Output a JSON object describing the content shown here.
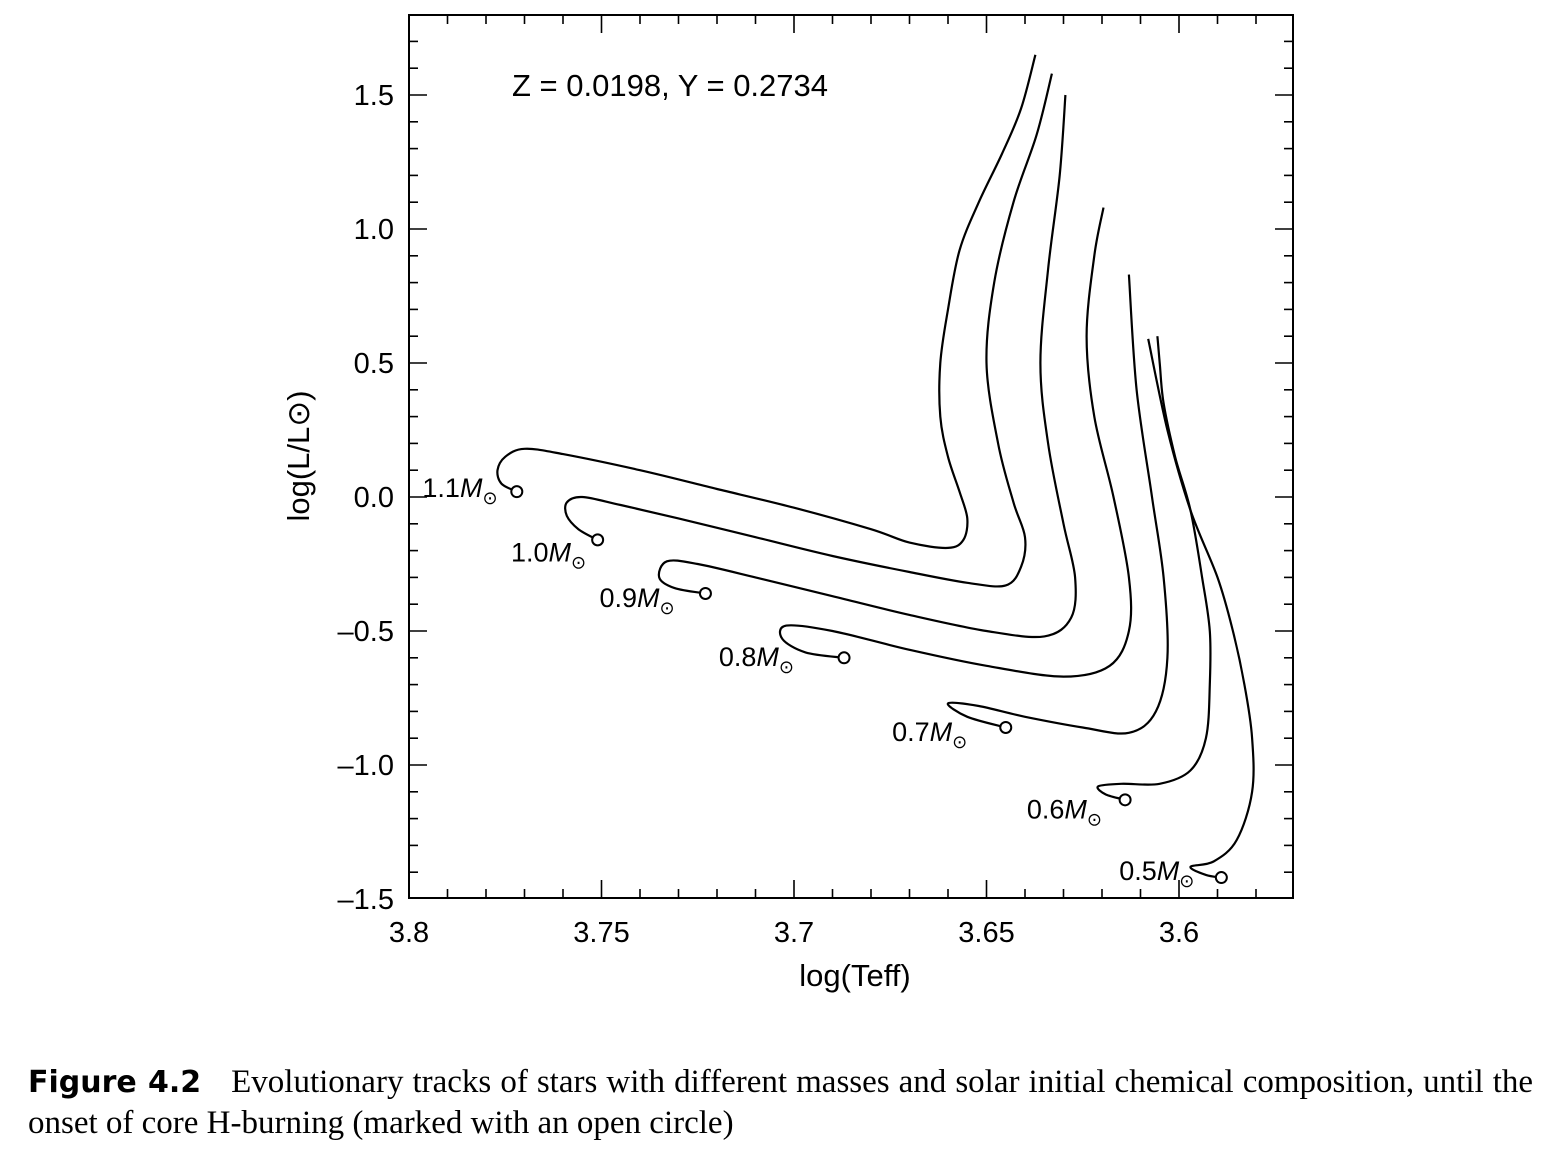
{
  "chart_data": {
    "type": "line",
    "annotation": "Z = 0.0198,  Y = 0.2734",
    "xlabel": "log(Teff)",
    "ylabel": "log(L/L⊙)",
    "xlim": [
      3.8,
      3.57
    ],
    "ylim": [
      -1.5,
      1.8
    ],
    "x_ticks": [
      3.8,
      3.75,
      3.7,
      3.65,
      3.6
    ],
    "x_tick_labels": [
      "3.8",
      "3.75",
      "3.7",
      "3.65",
      "3.6"
    ],
    "y_ticks": [
      1.5,
      1.0,
      0.5,
      0.0,
      -0.5,
      -1.0,
      -1.5
    ],
    "y_tick_labels": [
      "1.5",
      "1.0",
      "0.5",
      "0.0",
      "–0.5",
      "–1.0",
      "–1.5"
    ],
    "grid": false,
    "series": [
      {
        "name": "1.1M⊙",
        "zams": [
          3.772,
          0.02
        ],
        "x": [
          3.772,
          3.776,
          3.777,
          3.775,
          3.77,
          3.76,
          3.74,
          3.72,
          3.7,
          3.68,
          3.67,
          3.66,
          3.656,
          3.655,
          3.657,
          3.66,
          3.662,
          3.662,
          3.66,
          3.657,
          3.652,
          3.646,
          3.641,
          3.6373
        ],
        "y": [
          0.02,
          0.05,
          0.1,
          0.15,
          0.18,
          0.16,
          0.1,
          0.03,
          -0.04,
          -0.12,
          -0.17,
          -0.19,
          -0.16,
          -0.08,
          0.02,
          0.15,
          0.3,
          0.5,
          0.7,
          0.92,
          1.1,
          1.28,
          1.45,
          1.65
        ]
      },
      {
        "name": "1.0M⊙",
        "zams": [
          3.751,
          -0.16
        ],
        "x": [
          3.751,
          3.756,
          3.759,
          3.759,
          3.755,
          3.745,
          3.73,
          3.71,
          3.69,
          3.67,
          3.655,
          3.645,
          3.641,
          3.64,
          3.643,
          3.647,
          3.65,
          3.648,
          3.643,
          3.637,
          3.633
        ],
        "y": [
          -0.16,
          -0.12,
          -0.07,
          -0.02,
          0.0,
          -0.03,
          -0.08,
          -0.15,
          -0.22,
          -0.28,
          -0.32,
          -0.33,
          -0.26,
          -0.15,
          -0.02,
          0.2,
          0.5,
          0.8,
          1.1,
          1.35,
          1.58
        ]
      },
      {
        "name": "0.9M⊙",
        "zams": [
          3.723,
          -0.36
        ],
        "x": [
          3.723,
          3.731,
          3.735,
          3.733,
          3.725,
          3.71,
          3.69,
          3.67,
          3.65,
          3.635,
          3.628,
          3.627,
          3.63,
          3.634,
          3.636,
          3.634,
          3.631,
          3.6295
        ],
        "y": [
          -0.36,
          -0.34,
          -0.3,
          -0.24,
          -0.25,
          -0.3,
          -0.37,
          -0.44,
          -0.5,
          -0.52,
          -0.45,
          -0.3,
          -0.1,
          0.2,
          0.5,
          0.85,
          1.2,
          1.5
        ]
      },
      {
        "name": "0.8M⊙",
        "zams": [
          3.687,
          -0.6
        ],
        "x": [
          3.687,
          3.697,
          3.703,
          3.702,
          3.69,
          3.67,
          3.65,
          3.63,
          3.618,
          3.613,
          3.613,
          3.617,
          3.622,
          3.624,
          3.622,
          3.6196
        ],
        "y": [
          -0.6,
          -0.58,
          -0.53,
          -0.48,
          -0.5,
          -0.57,
          -0.63,
          -0.67,
          -0.63,
          -0.5,
          -0.3,
          0.0,
          0.3,
          0.6,
          0.9,
          1.08
        ]
      },
      {
        "name": "0.7M⊙",
        "zams": [
          3.645,
          -0.86
        ],
        "x": [
          3.645,
          3.655,
          3.66,
          3.652,
          3.64,
          3.625,
          3.613,
          3.606,
          3.603,
          3.604,
          3.607,
          3.611,
          3.613
        ],
        "y": [
          -0.86,
          -0.82,
          -0.77,
          -0.78,
          -0.82,
          -0.86,
          -0.88,
          -0.8,
          -0.6,
          -0.3,
          0.0,
          0.4,
          0.83
        ]
      },
      {
        "name": "0.6M⊙",
        "zams": [
          3.614,
          -1.13
        ],
        "x": [
          3.614,
          3.619,
          3.621,
          3.615,
          3.605,
          3.597,
          3.593,
          3.592,
          3.592,
          3.594,
          3.597,
          3.601,
          3.604,
          3.605,
          3.6056
        ],
        "y": [
          -1.13,
          -1.11,
          -1.08,
          -1.07,
          -1.07,
          -1.02,
          -0.9,
          -0.7,
          -0.5,
          -0.3,
          -0.05,
          0.15,
          0.35,
          0.5,
          0.6
        ]
      },
      {
        "name": "0.5M⊙",
        "zams": [
          3.589,
          -1.42
        ],
        "x": [
          3.589,
          3.593,
          3.597,
          3.591,
          3.585,
          3.581,
          3.581,
          3.583,
          3.586,
          3.59,
          3.597,
          3.603,
          3.608
        ],
        "y": [
          -1.42,
          -1.41,
          -1.38,
          -1.36,
          -1.28,
          -1.1,
          -0.9,
          -0.7,
          -0.5,
          -0.3,
          -0.05,
          0.25,
          0.59
        ]
      }
    ],
    "labels": [
      {
        "series": 0,
        "text_num": "1.1",
        "at": [
          3.777,
          0.0
        ]
      },
      {
        "series": 1,
        "text_num": "1.0",
        "at": [
          3.754,
          -0.24
        ]
      },
      {
        "series": 2,
        "text_num": "0.9",
        "at": [
          3.731,
          -0.41
        ]
      },
      {
        "series": 3,
        "text_num": "0.8",
        "at": [
          3.7,
          -0.63
        ]
      },
      {
        "series": 4,
        "text_num": "0.7",
        "at": [
          3.655,
          -0.91
        ]
      },
      {
        "series": 5,
        "text_num": "0.6",
        "at": [
          3.62,
          -1.2
        ]
      },
      {
        "series": 6,
        "text_num": "0.5",
        "at": [
          3.596,
          -1.43
        ]
      }
    ],
    "label_unit": "M⊙"
  },
  "caption": {
    "label": "Figure 4.2",
    "text": "Evolutionary tracks of stars with different masses and solar initial chemical composition, until the onset of core H-burning (marked with an open circle)"
  }
}
